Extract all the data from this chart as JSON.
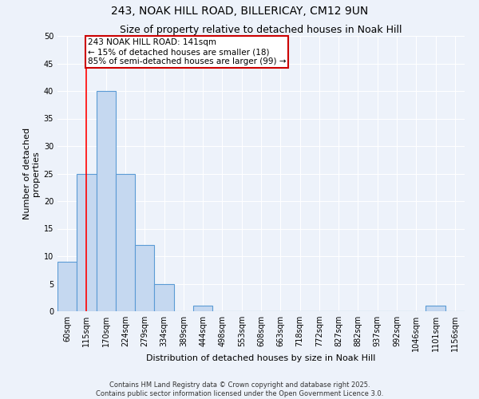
{
  "title": "243, NOAK HILL ROAD, BILLERICAY, CM12 9UN",
  "subtitle": "Size of property relative to detached houses in Noak Hill",
  "xlabel": "Distribution of detached houses by size in Noak Hill",
  "ylabel": "Number of detached\nproperties",
  "bins": [
    "60sqm",
    "115sqm",
    "170sqm",
    "224sqm",
    "279sqm",
    "334sqm",
    "389sqm",
    "444sqm",
    "498sqm",
    "553sqm",
    "608sqm",
    "663sqm",
    "718sqm",
    "772sqm",
    "827sqm",
    "882sqm",
    "937sqm",
    "992sqm",
    "1046sqm",
    "1101sqm",
    "1156sqm"
  ],
  "values": [
    9,
    25,
    40,
    25,
    12,
    5,
    0,
    1,
    0,
    0,
    0,
    0,
    0,
    0,
    0,
    0,
    0,
    0,
    0,
    1,
    0
  ],
  "bar_color": "#c5d8f0",
  "bar_edge_color": "#5b9bd5",
  "bar_edge_width": 0.8,
  "ylim": [
    0,
    50
  ],
  "yticks": [
    0,
    5,
    10,
    15,
    20,
    25,
    30,
    35,
    40,
    45,
    50
  ],
  "red_line_x": 1.0,
  "annotation_text": "243 NOAK HILL ROAD: 141sqm\n← 15% of detached houses are smaller (18)\n85% of semi-detached houses are larger (99) →",
  "annotation_box_color": "#ffffff",
  "annotation_box_edge": "#cc0000",
  "footer1": "Contains HM Land Registry data © Crown copyright and database right 2025.",
  "footer2": "Contains public sector information licensed under the Open Government Licence 3.0.",
  "background_color": "#edf2fa",
  "grid_color": "#ffffff",
  "title_fontsize": 10,
  "subtitle_fontsize": 9,
  "axis_fontsize": 8,
  "tick_fontsize": 7,
  "annotation_fontsize": 7.5,
  "footer_fontsize": 6
}
